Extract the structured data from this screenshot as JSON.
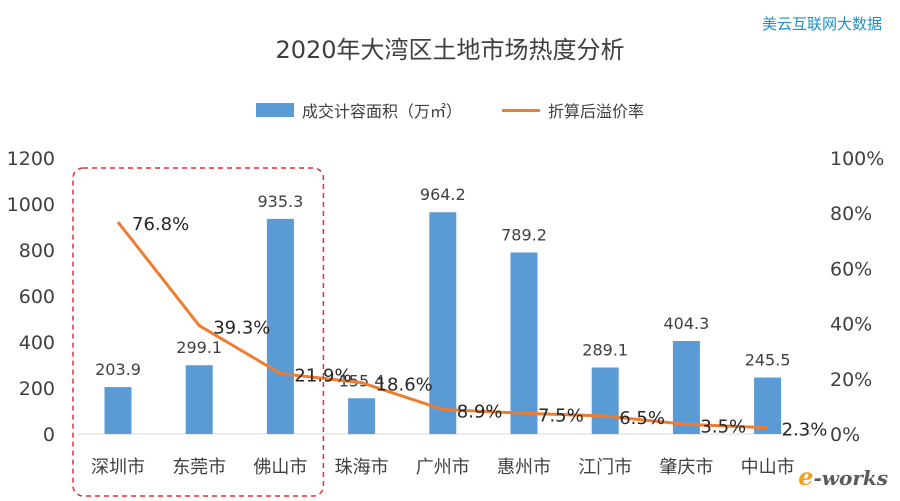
{
  "watermark": "美云互联网大数据",
  "logo": {
    "e": "e",
    "rest": "-works"
  },
  "chart_data": {
    "type": "bar+line",
    "title": "2020年大湾区土地市场热度分析",
    "categories": [
      "深圳市",
      "东莞市",
      "佛山市",
      "珠海市",
      "广州市",
      "惠州市",
      "江门市",
      "肇庆市",
      "中山市"
    ],
    "series": [
      {
        "name": "成交计容面积（万㎡）",
        "type": "bar",
        "axis": "left",
        "values": [
          203.9,
          299.1,
          935.3,
          155.4,
          964.2,
          789.2,
          289.1,
          404.3,
          245.5
        ],
        "color": "#5b9bd5"
      },
      {
        "name": "折算后溢价率",
        "type": "line",
        "axis": "right",
        "values": [
          76.8,
          39.3,
          21.9,
          18.6,
          8.9,
          7.5,
          6.5,
          3.5,
          2.3
        ],
        "labels": [
          "76.8%",
          "39.3%",
          "21.9%",
          "18.6%",
          "8.9%",
          "7.5%",
          "6.5%",
          "3.5%",
          "2.3%"
        ],
        "color": "#ed7d31"
      }
    ],
    "y_left": {
      "min": 0,
      "max": 1200,
      "ticks": [
        "0",
        "200",
        "400",
        "600",
        "800",
        "1000",
        "1200"
      ]
    },
    "y_right": {
      "min": 0,
      "max": 100,
      "ticks": [
        "0%",
        "20%",
        "40%",
        "60%",
        "80%",
        "100%"
      ]
    },
    "highlight": {
      "categories": [
        "深圳市",
        "东莞市",
        "佛山市"
      ],
      "style": "red dashed rounded box",
      "color": "#e03030"
    },
    "legend_position": "top",
    "grid": false
  }
}
